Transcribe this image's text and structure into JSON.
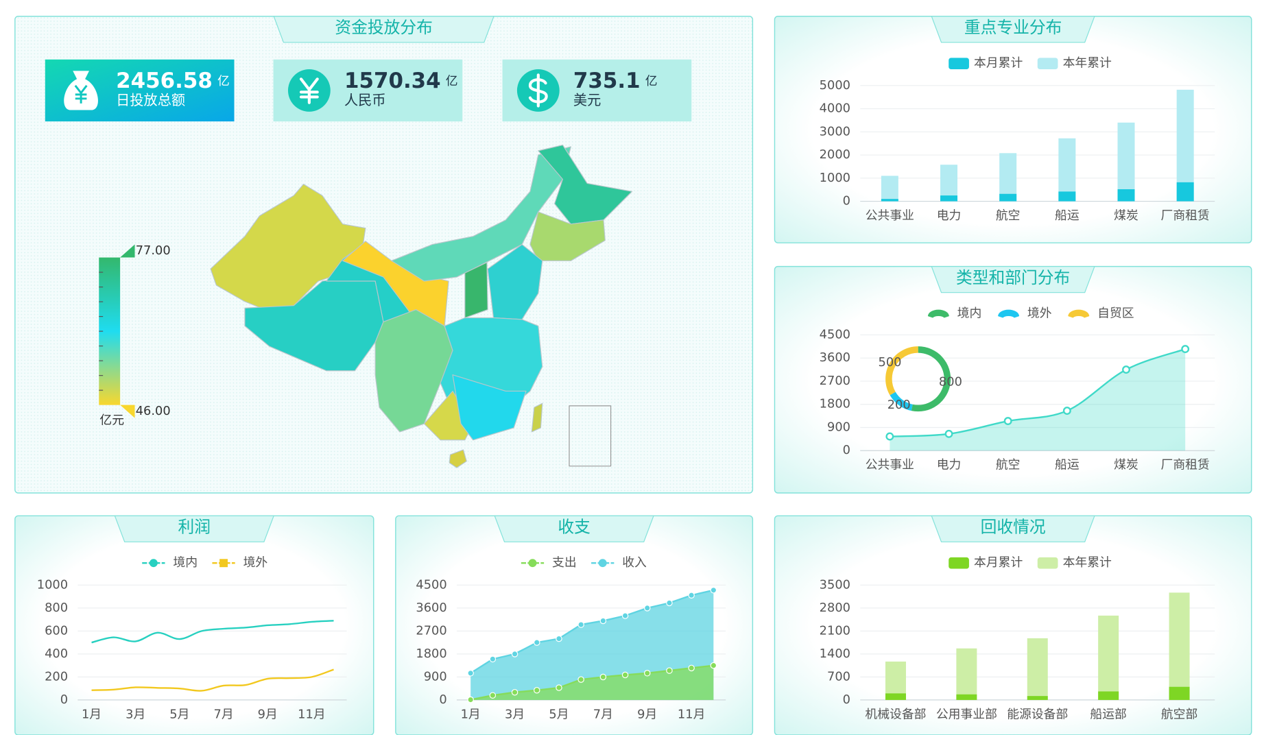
{
  "kpis": [
    {
      "value": 2456.58,
      "unit": "亿",
      "label": "日投放总额"
    },
    {
      "value": 1570.34,
      "unit": "亿",
      "label": "人民币"
    },
    {
      "value": 735.1,
      "unit": "亿",
      "label": "美元"
    }
  ],
  "chart_data": [
    {
      "type": "map",
      "title": "资金投放分布",
      "unit": "亿元",
      "range": [
        {
          "value": 46,
          "label": "46.00"
        },
        {
          "value": 77,
          "label": "77.00"
        }
      ],
      "colors": [
        "#f8d72e",
        "#1fdcf0",
        "#33b86d"
      ]
    },
    {
      "type": "bar",
      "title": "重点专业分布",
      "categories": [
        "公共事业",
        "电力",
        "航空",
        "船运",
        "煤炭",
        "厂商租赁"
      ],
      "series": [
        {
          "name": "本月累计",
          "color": "#17c8de",
          "values": [
            100,
            250,
            320,
            420,
            520,
            820
          ]
        },
        {
          "name": "本年累计",
          "color": "#b3ebf2",
          "values": [
            1100,
            1580,
            2080,
            2720,
            3400,
            4820
          ]
        }
      ],
      "ylim": [
        0,
        5000
      ],
      "yticks": [
        0,
        1000,
        2000,
        3000,
        4000,
        5000
      ],
      "grid": true,
      "overlap": true
    },
    {
      "type": "line",
      "title": "类型和部门分布",
      "categories": [
        "公共事业",
        "电力",
        "航空",
        "船运",
        "煤炭",
        "厂商租赁"
      ],
      "values": [
        550,
        650,
        1150,
        1550,
        3150,
        3950
      ],
      "color": "#3fd9c8",
      "area": true,
      "smooth": true,
      "markers": true,
      "ylim": [
        0,
        4500
      ],
      "yticks": [
        0,
        900,
        1800,
        2700,
        3600,
        4500
      ],
      "grid": true
    },
    {
      "type": "pie",
      "categories": [
        "境内",
        "境外",
        "自贸区"
      ],
      "values": [
        800,
        200,
        500
      ],
      "colors": [
        "#3dbb69",
        "#1ec6f0",
        "#f6c935"
      ]
    },
    {
      "type": "line",
      "title": "利润",
      "categories": [
        "1月",
        null,
        "3月",
        null,
        "5月",
        null,
        "7月",
        null,
        "9月",
        null,
        "11月",
        null
      ],
      "series": [
        {
          "name": "境内",
          "color": "#27d0c0",
          "values": [
            500,
            545,
            510,
            585,
            530,
            600,
            620,
            630,
            650,
            660,
            680,
            690
          ]
        },
        {
          "name": "境外",
          "color": "#f2c81e",
          "values": [
            85,
            90,
            110,
            105,
            100,
            80,
            125,
            130,
            185,
            190,
            200,
            265
          ]
        }
      ],
      "smooth": true,
      "ylim": [
        0,
        1000
      ],
      "yticks": [
        0,
        200,
        400,
        600,
        800,
        1000
      ],
      "grid": true
    },
    {
      "type": "line",
      "title": "收支",
      "categories": [
        "1月",
        null,
        "3月",
        null,
        "5月",
        null,
        "7月",
        null,
        "9月",
        null,
        "11月",
        null
      ],
      "series": [
        {
          "name": "支出",
          "color": "#86dc5a",
          "values": [
            10,
            180,
            300,
            380,
            480,
            800,
            900,
            980,
            1050,
            1150,
            1250,
            1350
          ]
        },
        {
          "name": "收入",
          "color": "#5fd4e2",
          "values": [
            1050,
            1600,
            1800,
            2250,
            2400,
            2950,
            3100,
            3300,
            3600,
            3800,
            4100,
            4300
          ]
        }
      ],
      "area": true,
      "markers": true,
      "ylim": [
        0,
        4500
      ],
      "yticks": [
        0,
        900,
        1800,
        2700,
        3600,
        4500
      ],
      "grid": true
    },
    {
      "type": "bar",
      "title": "回收情况",
      "categories": [
        "机械设备部",
        "公用事业部",
        "能源设备部",
        "船运部",
        "航空部"
      ],
      "series": [
        {
          "name": "本月累计",
          "color": "#7ed624",
          "values": [
            200,
            170,
            120,
            260,
            400
          ]
        },
        {
          "name": "本年累计",
          "color": "#cdeea6",
          "values": [
            1170,
            1570,
            1880,
            2570,
            3270
          ]
        }
      ],
      "ylim": [
        0,
        3500
      ],
      "yticks": [
        0,
        700,
        1400,
        2100,
        2800,
        3500
      ],
      "grid": true,
      "overlap": true
    }
  ]
}
